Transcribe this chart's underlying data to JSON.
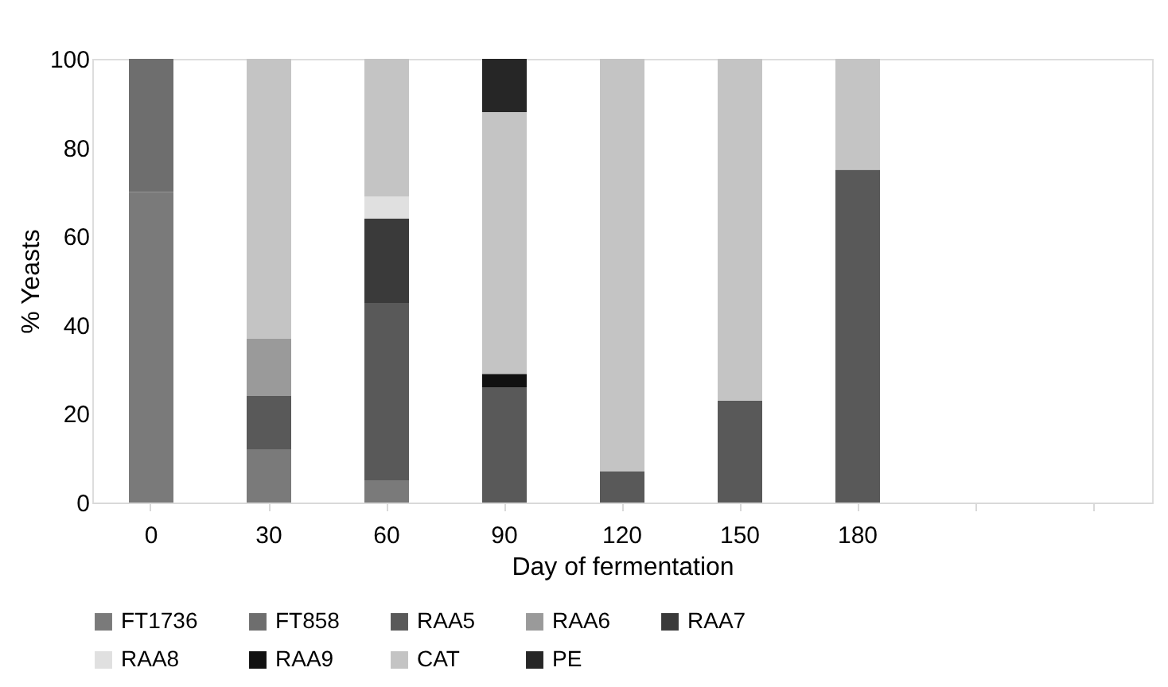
{
  "chart_data": {
    "type": "bar",
    "stacked": true,
    "xlabel": "Day of fermentation",
    "ylabel": "% Yeasts",
    "categories": [
      "0",
      "30",
      "60",
      "90",
      "120",
      "150",
      "180",
      null,
      null
    ],
    "ylim": [
      0,
      100
    ],
    "yticks": [
      0,
      20,
      40,
      60,
      80,
      100
    ],
    "grid": false,
    "legend": "bottom",
    "series": [
      {
        "name": "FT1736",
        "color": "#7a7a7a",
        "values": [
          70,
          12,
          5,
          null,
          null,
          null,
          null,
          null,
          null
        ]
      },
      {
        "name": "FT858",
        "color": "#6e6e6e",
        "values": [
          30,
          null,
          null,
          null,
          null,
          null,
          null,
          null,
          null
        ]
      },
      {
        "name": "RAA5",
        "color": "#595959",
        "values": [
          null,
          12,
          40,
          26,
          7,
          23,
          75,
          null,
          null
        ]
      },
      {
        "name": "RAA6",
        "color": "#9a9a9a",
        "values": [
          null,
          13,
          null,
          null,
          null,
          null,
          null,
          null,
          null
        ]
      },
      {
        "name": "RAA7",
        "color": "#3a3a3a",
        "values": [
          null,
          null,
          19,
          null,
          null,
          null,
          null,
          null,
          null
        ]
      },
      {
        "name": "RAA8",
        "color": "#e0e0e0",
        "values": [
          null,
          null,
          5,
          null,
          null,
          null,
          null,
          null,
          null
        ]
      },
      {
        "name": "RAA9",
        "color": "#111111",
        "values": [
          null,
          null,
          null,
          3,
          null,
          null,
          null,
          null,
          null
        ]
      },
      {
        "name": "CAT",
        "color": "#c4c4c4",
        "values": [
          null,
          63,
          31,
          59,
          93,
          77,
          25,
          null,
          null
        ]
      },
      {
        "name": "PE",
        "color": "#262626",
        "values": [
          null,
          null,
          null,
          12,
          null,
          null,
          null,
          null,
          null
        ]
      }
    ]
  }
}
